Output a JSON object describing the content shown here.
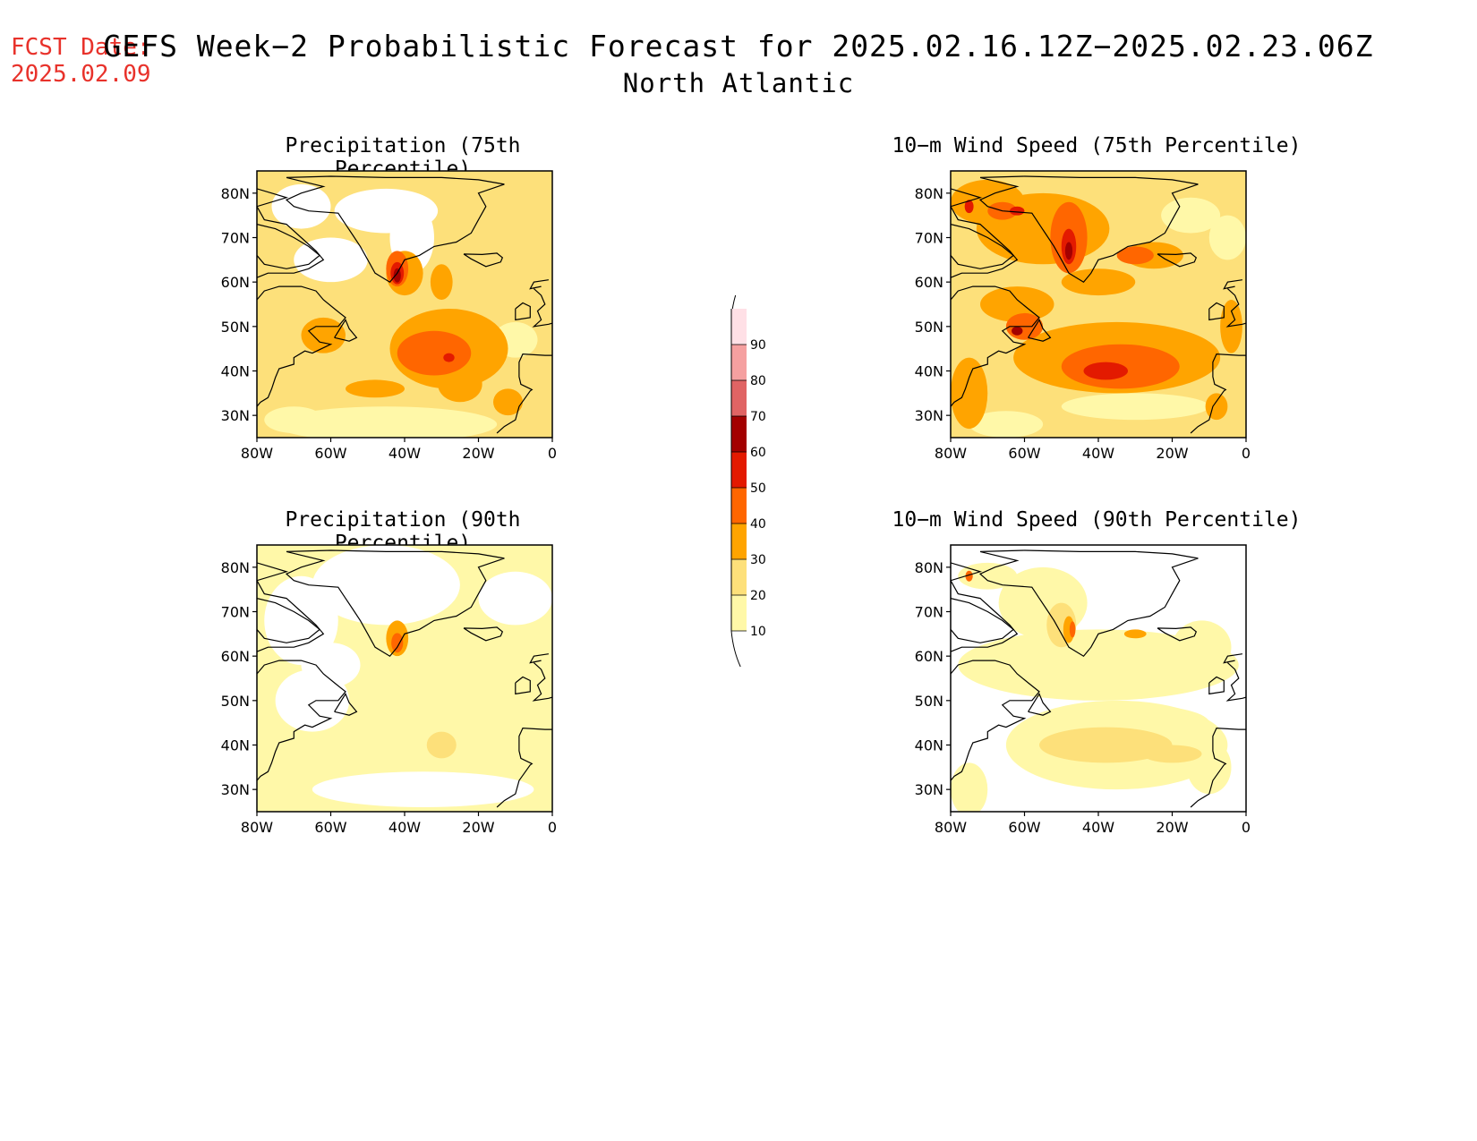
{
  "header": {
    "fcst_label": "FCST Date:",
    "fcst_date": "2025.02.09",
    "title": "GEFS Week−2 Probabilistic Forecast for 2025.02.16.12Z−2025.02.23.06Z",
    "region": "North Atlantic"
  },
  "panels": [
    {
      "id": "p75",
      "title": "Precipitation (75th Percentile)"
    },
    {
      "id": "p90",
      "title": "Precipitation (90th Percentile)"
    },
    {
      "id": "w75",
      "title": "10−m Wind Speed (75th Percentile)"
    },
    {
      "id": "w90",
      "title": "10−m Wind Speed (90th Percentile)"
    }
  ],
  "axes": {
    "lon_ticks": [
      "80W",
      "60W",
      "40W",
      "20W",
      "0"
    ],
    "lat_ticks": [
      "80N",
      "70N",
      "60N",
      "50N",
      "40N",
      "30N"
    ]
  },
  "colorbar": {
    "levels": [
      10,
      20,
      30,
      40,
      50,
      60,
      70,
      80,
      90
    ],
    "colors": [
      "#fff8a8",
      "#fde07a",
      "#ffa400",
      "#ff6600",
      "#e31a00",
      "#a30000",
      "#e06464",
      "#f5a0a0",
      "#ffe0e6"
    ],
    "labels": [
      "10",
      "20",
      "30",
      "40",
      "50",
      "60",
      "70",
      "80",
      "90"
    ]
  }
}
